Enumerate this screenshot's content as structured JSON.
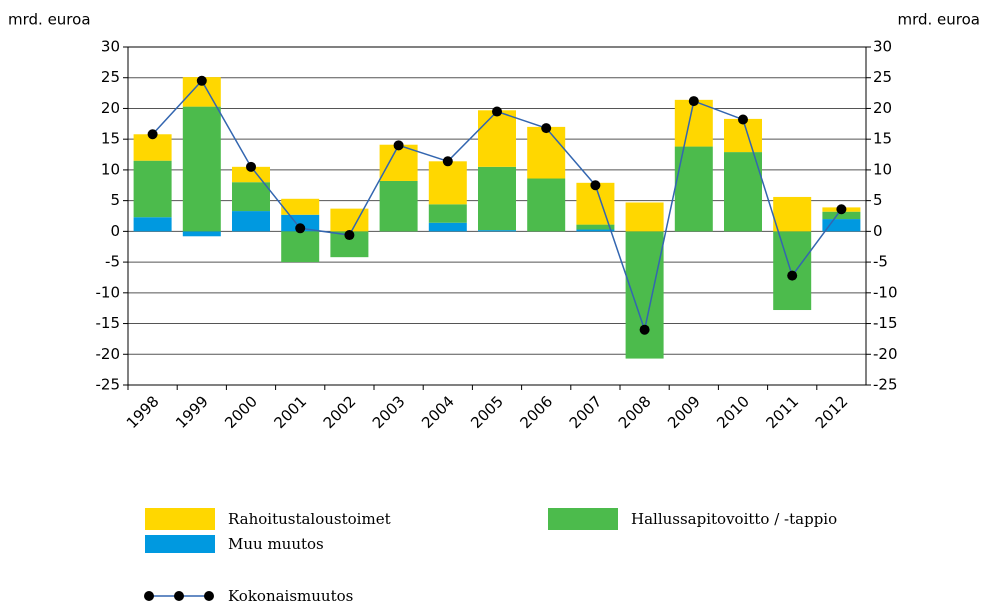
{
  "chart_data": {
    "type": "bar",
    "ylabel": "mrd. euroa",
    "y2label": "mrd. euroa",
    "categories": [
      "1998",
      "1999",
      "2000",
      "2001",
      "2002",
      "2003",
      "2004",
      "2005",
      "2006",
      "2007",
      "2008",
      "2009",
      "2010",
      "2011",
      "2012"
    ],
    "series": [
      {
        "name": "Rahoitustaloustoimet",
        "type": "bar",
        "color": "#ffd700",
        "values": [
          4.3,
          4.8,
          2.5,
          2.6,
          3.7,
          5.9,
          7,
          9.2,
          8.4,
          6.8,
          4.7,
          7.6,
          5.4,
          5.6,
          0.7
        ]
      },
      {
        "name": "Hallussapitovoitto / -tappio",
        "type": "bar",
        "color": "#4cbb4c",
        "values": [
          9.2,
          20.3,
          4.7,
          -5,
          -4.2,
          8.2,
          3,
          10.3,
          8.6,
          0.8,
          -20.7,
          13.8,
          12.9,
          -12.8,
          1.2
        ]
      },
      {
        "name": "Muu muutos",
        "type": "bar",
        "color": "#0099e0",
        "values": [
          2.3,
          -0.8,
          3.3,
          2.7,
          0,
          0,
          1.4,
          0.2,
          0,
          0.3,
          0,
          0,
          0,
          0,
          2
        ]
      },
      {
        "name": "Kokonaismuutos",
        "type": "line",
        "color": "#3366b0",
        "values": [
          15.8,
          24.5,
          10.5,
          0.5,
          -0.6,
          14,
          11.4,
          19.5,
          16.8,
          7.5,
          -16,
          21.2,
          18.2,
          -7.2,
          3.6
        ]
      }
    ],
    "ylim": [
      -25,
      30
    ],
    "yticks": [
      -25,
      -20,
      -15,
      -10,
      -5,
      0,
      5,
      10,
      15,
      20,
      25,
      30
    ],
    "y2lim": [
      -25,
      30
    ],
    "y2ticks": [
      -25,
      -20,
      -15,
      -10,
      -5,
      0,
      5,
      10,
      15,
      20,
      25,
      30
    ],
    "grid": true
  }
}
